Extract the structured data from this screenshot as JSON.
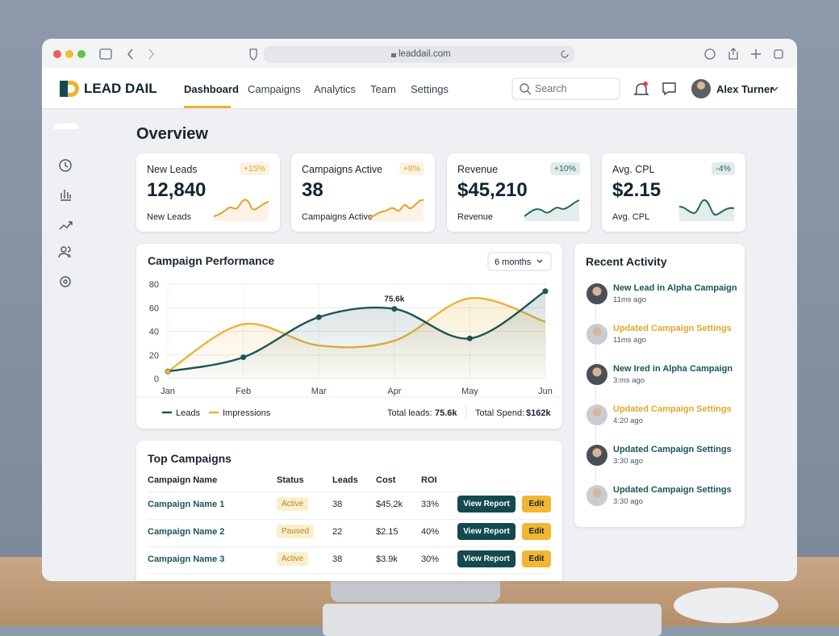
{
  "browser": {
    "url": "leaddail.com"
  },
  "nav": {
    "brand": "LEAD DAIL",
    "items": [
      "Dashboard",
      "Campaigns",
      "Analytics",
      "Team",
      "Settings"
    ],
    "search": "Search",
    "user": "Alex Turner"
  },
  "overview": {
    "title": "Overview",
    "cards": [
      {
        "label": "New Leads",
        "change": "+15%",
        "value": "12,840",
        "caption": "New Leads",
        "color": "#e3a02f"
      },
      {
        "label": "Campaigns Active",
        "change": "+8%",
        "value": "38",
        "caption": "Campaigns Active",
        "color": "#e3a02f"
      },
      {
        "label": "Revenue",
        "change": "+10%",
        "value": "$45,210",
        "caption": "Revenue",
        "color": "#1d6a64"
      },
      {
        "label": "Avg. CPL",
        "change": "-4%",
        "value": "$2.15",
        "caption": "Avg. CPL",
        "color": "#1d6a64"
      }
    ]
  },
  "performance": {
    "type": "line",
    "title": "Campaign Performance",
    "period": "6 months",
    "categories": [
      "Jan",
      "Feb",
      "Mar",
      "Apr",
      "May",
      "Jun"
    ],
    "series": [
      {
        "name": "Leads",
        "color": "#1d5457",
        "values": [
          6,
          18,
          52,
          59,
          34,
          74
        ]
      },
      {
        "name": "Impressions",
        "color": "#e8b43c",
        "values": [
          6,
          46,
          28,
          32,
          68,
          48
        ]
      }
    ],
    "ylim": [
      0,
      80
    ],
    "yticks": [
      0,
      20,
      40,
      60,
      80
    ],
    "grid": true,
    "annotation": "75.6k",
    "totals": [
      {
        "label": "Total leads:",
        "value": "75.6k"
      },
      {
        "label": "Total Spend:",
        "value": "$162k"
      }
    ]
  },
  "campaigns": {
    "title": "Top Campaigns",
    "columns": [
      "Campaign Name",
      "Status",
      "Leads",
      "Cost",
      "ROI"
    ],
    "rows": [
      [
        "Campaign Name 1",
        "Active",
        "38",
        "$45,2k",
        "33%"
      ],
      [
        "Campaign Name 2",
        "Paused",
        "22",
        "$2.15",
        "40%"
      ],
      [
        "Campaign Name 3",
        "Active",
        "38",
        "$3.9k",
        "30%"
      ]
    ],
    "actions": [
      "View Report",
      "Edit"
    ]
  },
  "activity": {
    "title": "Recent Activity",
    "items": [
      {
        "text": "New Lead in Alpha Campaign",
        "time": "11ms ago",
        "color": "#1d5457"
      },
      {
        "text": "Updated Campaign Settings",
        "time": "11ms ago",
        "color": "#e0a72c"
      },
      {
        "text": "New Ired in Alpha Campaign",
        "time": "3:ms ago",
        "color": "#1d5457"
      },
      {
        "text": "Updated Campaign Settings",
        "time": "4:20 ago",
        "color": "#e0a72c"
      },
      {
        "text": "Updated Campaign Settings",
        "time": "3:30 ago",
        "color": "#1d5457"
      },
      {
        "text": "Updated Campaign Settings",
        "time": "3:30 ago",
        "color": "#1d5457"
      }
    ]
  }
}
